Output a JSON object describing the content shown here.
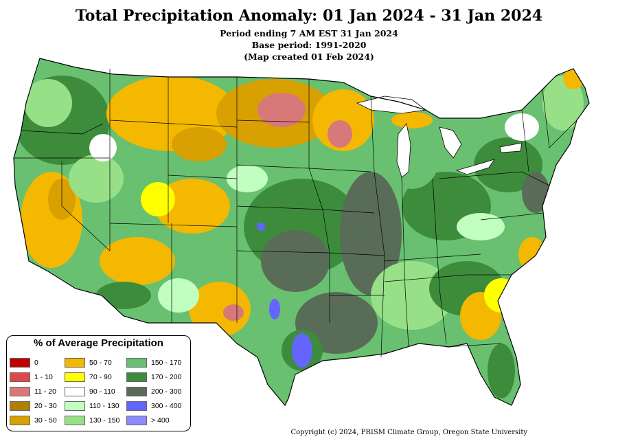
{
  "header": {
    "title": "Total Precipitation Anomaly: 01 Jan 2024 - 31 Jan 2024",
    "line1": "Period ending 7 AM EST 31 Jan 2024",
    "line2": "Base period: 1991-2020",
    "line3": "(Map created 01 Feb 2024)"
  },
  "legend": {
    "title": "% of Average Precipitation",
    "items": [
      {
        "label": "0",
        "color": "#c00000"
      },
      {
        "label": "1 - 10",
        "color": "#e04848"
      },
      {
        "label": "11 - 20",
        "color": "#d87878"
      },
      {
        "label": "20 - 30",
        "color": "#b08000"
      },
      {
        "label": "30 - 50",
        "color": "#d8a000"
      },
      {
        "label": "50 - 70",
        "color": "#f4b800"
      },
      {
        "label": "70 - 90",
        "color": "#ffff00"
      },
      {
        "label": "90 - 110",
        "color": "#ffffff"
      },
      {
        "label": "110 - 130",
        "color": "#c0ffc0"
      },
      {
        "label": "130 - 150",
        "color": "#98e088"
      },
      {
        "label": "150 - 170",
        "color": "#68c070"
      },
      {
        "label": "170 - 200",
        "color": "#3c8c3c"
      },
      {
        "label": "200 - 300",
        "color": "#586c58"
      },
      {
        "label": "300 - 400",
        "color": "#6464ff"
      },
      {
        "label": "> 400",
        "color": "#8c8cff"
      }
    ]
  },
  "footer": {
    "copyright": "Copyright (c) 2024, PRISM Climate Group, Oregon State University"
  }
}
